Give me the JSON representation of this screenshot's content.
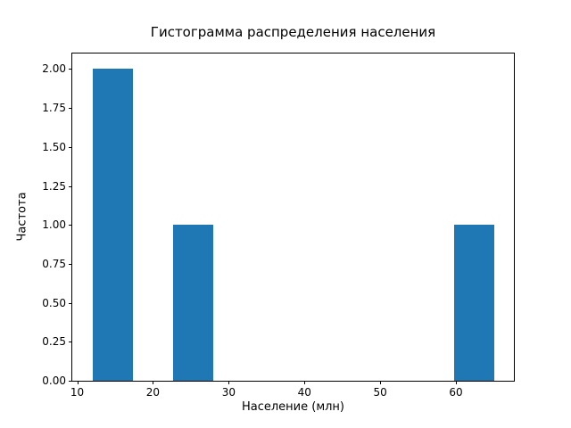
{
  "chart_data": {
    "type": "bar",
    "subtype": "histogram",
    "title": "Гистограмма распределения населения",
    "xlabel": "Население (млн)",
    "ylabel": "Частота",
    "bar_color": "#1f77b4",
    "bin_edges": [
      12.0,
      17.3,
      22.6,
      27.9,
      33.2,
      38.5,
      43.8,
      49.1,
      54.4,
      59.7,
      65.0
    ],
    "counts": [
      2,
      0,
      1,
      0,
      0,
      0,
      0,
      0,
      0,
      1
    ],
    "xlim": [
      9.35,
      67.65
    ],
    "ylim": [
      0,
      2.1
    ],
    "x_ticks": [
      10,
      20,
      30,
      40,
      50,
      60
    ],
    "x_tick_labels": [
      "10",
      "20",
      "30",
      "40",
      "50",
      "60"
    ],
    "y_ticks": [
      0,
      0.25,
      0.5,
      0.75,
      1.0,
      1.25,
      1.5,
      1.75,
      2.0
    ],
    "y_tick_labels": [
      "0.00",
      "0.25",
      "0.50",
      "0.75",
      "1.00",
      "1.25",
      "1.50",
      "1.75",
      "2.00"
    ],
    "grid": false,
    "legend_position": "none"
  }
}
